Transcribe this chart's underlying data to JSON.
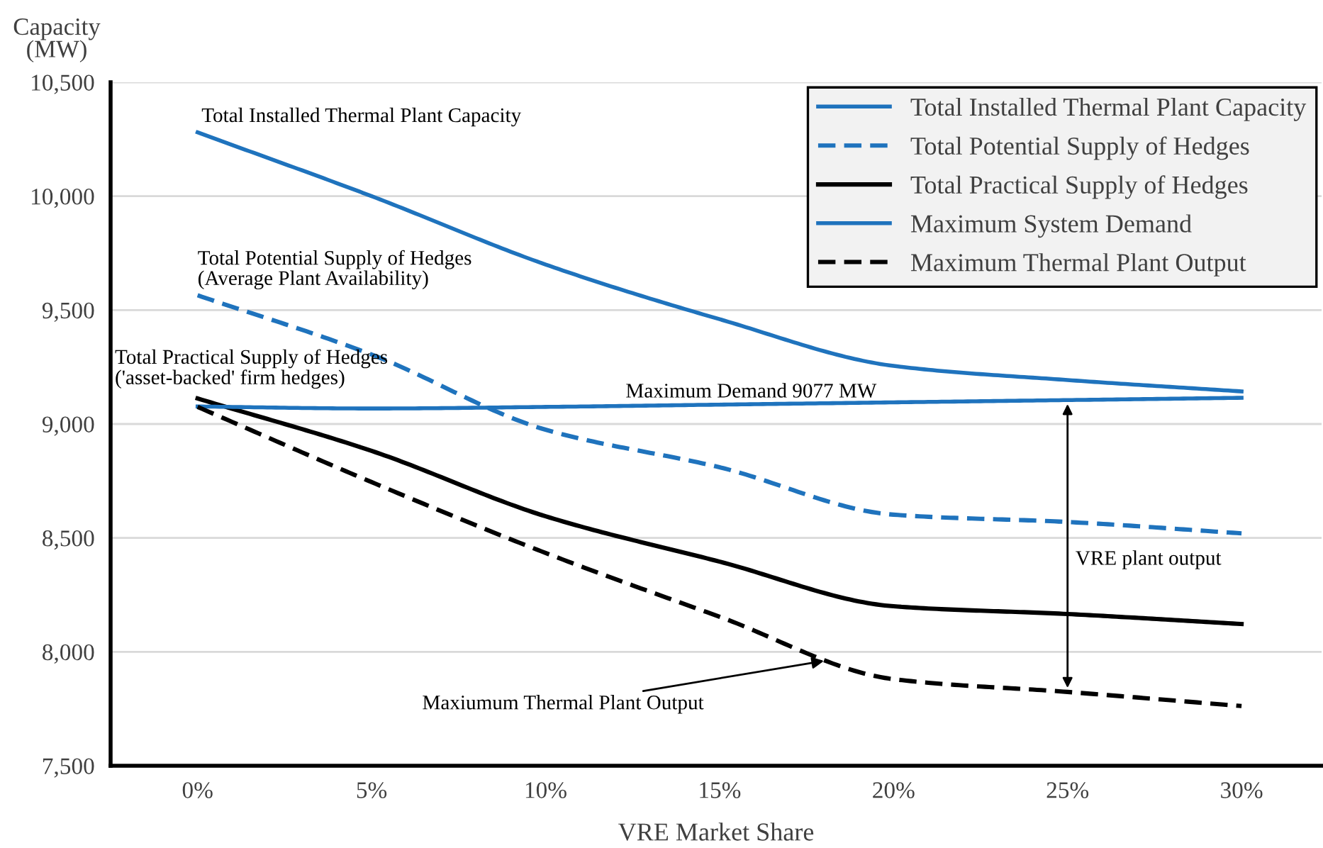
{
  "chart_data": {
    "type": "line",
    "xlabel": "VRE Market Share",
    "ylabel": "Capacity\n(MW)",
    "x": [
      0,
      5,
      10,
      15,
      20,
      25,
      30
    ],
    "series": [
      {
        "name": "Total Installed Thermal Plant Capacity",
        "color": "#1f73bd",
        "line_style": "solid",
        "values": [
          10280,
          10000,
          9700,
          9460,
          9255,
          9193,
          9143
        ]
      },
      {
        "name": "Total Potential Supply of Hedges",
        "color": "#1f73bd",
        "line_style": "dashed",
        "values": [
          9565,
          9305,
          8975,
          8810,
          8602,
          8570,
          8520
        ]
      },
      {
        "name": "Total Practical Supply of Hedges",
        "color": "#000000",
        "line_style": "solid",
        "values": [
          9112,
          8882,
          8595,
          8396,
          8200,
          8166,
          8122
        ]
      },
      {
        "name": "Maximum System Demand",
        "color": "#1f73bd",
        "line_style": "solid",
        "values": [
          9077,
          9068,
          9075,
          9085,
          9095,
          9105,
          9115
        ]
      },
      {
        "name": "Maximum Thermal Plant Output",
        "color": "#000000",
        "line_style": "dashed",
        "values": [
          9075,
          8745,
          8434,
          8154,
          7880,
          7824,
          7762
        ]
      }
    ],
    "xlim": [
      -2.5,
      32.3
    ],
    "ylim": [
      7500,
      10500
    ],
    "xticks": [
      {
        "value": 0,
        "label": "0%"
      },
      {
        "value": 5,
        "label": "5%"
      },
      {
        "value": 10,
        "label": "10%"
      },
      {
        "value": 15,
        "label": "15%"
      },
      {
        "value": 20,
        "label": "20%"
      },
      {
        "value": 25,
        "label": "25%"
      },
      {
        "value": 30,
        "label": "30%"
      }
    ],
    "yticks": [
      {
        "value": 7500,
        "label": "7,500"
      },
      {
        "value": 8000,
        "label": "8,000"
      },
      {
        "value": 8500,
        "label": "8,500"
      },
      {
        "value": 9000,
        "label": "9,000"
      },
      {
        "value": 9500,
        "label": "9,500"
      },
      {
        "value": 10000,
        "label": "10,000"
      },
      {
        "value": 10500,
        "label": "10,500"
      }
    ],
    "grid": "y",
    "legend": "top right",
    "marker": "none",
    "annotations": [
      {
        "text": "Total Installed Thermal Plant Capacity",
        "x": 0,
        "y": 10280
      },
      {
        "text": "Total Potential Supply of Hedges\n(Average Plant Availability)",
        "x": 0,
        "y": 9565
      },
      {
        "text": "Total Practical Supply of Hedges\n('asset-backed' firm hedges)",
        "x": 0,
        "y": 9112
      },
      {
        "text": "Maximum Demand 9077 MW",
        "x": 12.3,
        "y": 9080
      },
      {
        "text": "Maxiumum Thermal Plant Output",
        "x": 18,
        "y": 7960
      },
      "VRE plant output"
    ]
  }
}
